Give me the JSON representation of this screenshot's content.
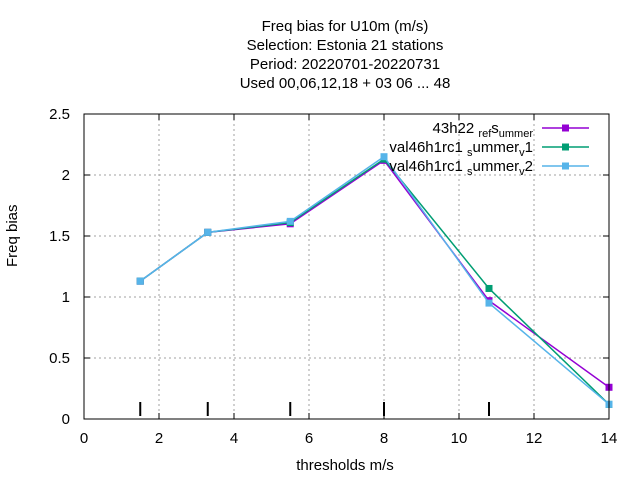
{
  "chart_data": {
    "type": "line",
    "title_lines": [
      "Freq bias  for U10m (m/s)",
      "Selection: Estonia      21 stations",
      "Period: 20220701-20220731",
      "Used  00,06,12,18  + 03 06 ... 48"
    ],
    "xlabel": "thresholds m/s",
    "ylabel": "Freq bias",
    "xlim": [
      0,
      14
    ],
    "ylim": [
      0,
      2.5
    ],
    "x_ticks": [
      "0",
      "2",
      "4",
      "6",
      "8",
      "10",
      "12",
      "14"
    ],
    "y_ticks": [
      "0",
      "0.5",
      "1",
      "1.5",
      "2",
      "2.5"
    ],
    "grid": true,
    "legend_position": "top-right",
    "threshold_markers": [
      1.5,
      3.3,
      5.5,
      8,
      10.8
    ],
    "series": [
      {
        "name": "43h22_ref_summer",
        "legend_parts": [
          "43h22 ",
          "ref",
          "s",
          "ummer"
        ],
        "color": "#9400d3",
        "x": [
          1.5,
          3.3,
          5.5,
          8,
          10.8,
          14
        ],
        "y": [
          1.13,
          1.53,
          1.6,
          2.12,
          0.97,
          0.26
        ]
      },
      {
        "name": "val46h1rc1_summer_v1",
        "legend_parts": [
          "val46h1rc1 ",
          "s",
          "ummer",
          "v",
          "1"
        ],
        "color": "#009e73",
        "x": [
          1.5,
          3.3,
          5.5,
          8,
          10.8,
          14
        ],
        "y": [
          1.13,
          1.53,
          1.61,
          2.13,
          1.07,
          0.12
        ]
      },
      {
        "name": "val46h1rc1_summer_v2",
        "legend_parts": [
          "val46h1rc1 ",
          "s",
          "ummer",
          "v",
          "2"
        ],
        "color": "#56b4e9",
        "x": [
          1.5,
          3.3,
          5.5,
          8,
          10.8,
          14
        ],
        "y": [
          1.13,
          1.53,
          1.62,
          2.15,
          0.95,
          0.12
        ]
      }
    ]
  }
}
